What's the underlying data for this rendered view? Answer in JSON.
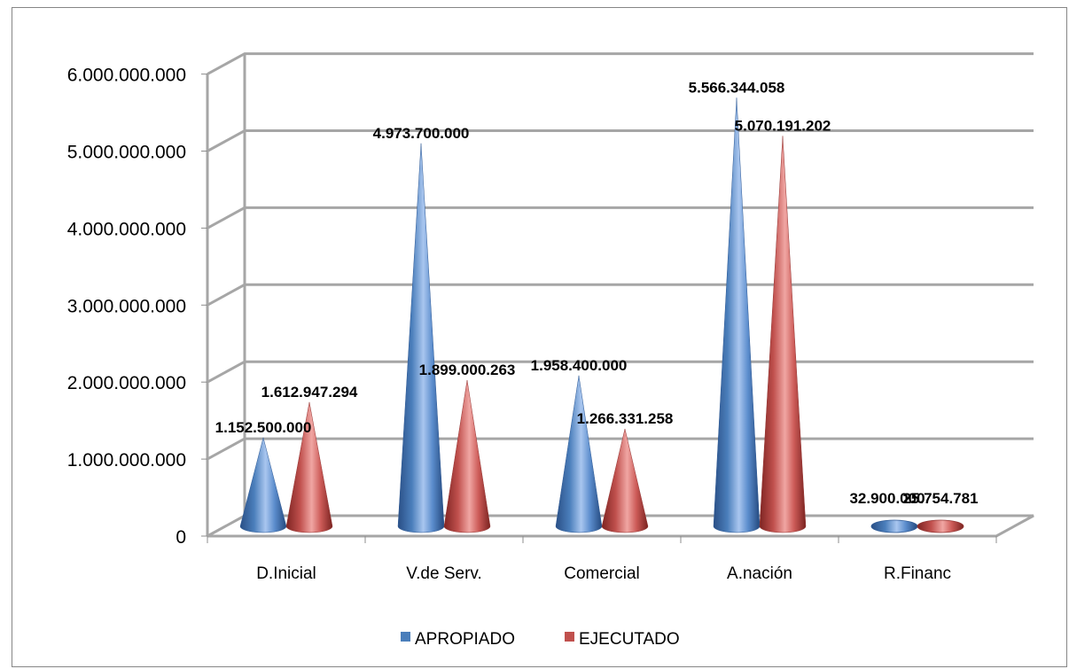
{
  "chart_data": {
    "type": "bar",
    "shape": "cone-3d",
    "categories": [
      "D.Inicial",
      "V.de Serv.",
      "Comercial",
      "A.nación",
      "R.Financ"
    ],
    "series": [
      {
        "name": "APROPIADO",
        "color": "#4a7ebb",
        "values": [
          1152500000,
          4973700000,
          1958400000,
          5566344058,
          32900000
        ],
        "labels": [
          "1.152.500.000",
          "4.973.700.000",
          "1.958.400.000",
          "5.566.344.058",
          "32.900.000"
        ]
      },
      {
        "name": "EJECUTADO",
        "color": "#c0504d",
        "values": [
          1612947294,
          1899000263,
          1266331258,
          5070191202,
          25754781
        ],
        "labels": [
          "1.612.947.294",
          "1.899.000.263",
          "1.266.331.258",
          "5.070.191.202",
          "25.754.781"
        ]
      }
    ],
    "yticks": [
      "0",
      "1.000.000.000",
      "2.000.000.000",
      "3.000.000.000",
      "4.000.000.000",
      "5.000.000.000",
      "6.000.000.000"
    ],
    "ylim": [
      0,
      6000000000
    ],
    "grid": true,
    "legend": "bottom",
    "title": "",
    "xlabel": "",
    "ylabel": ""
  }
}
